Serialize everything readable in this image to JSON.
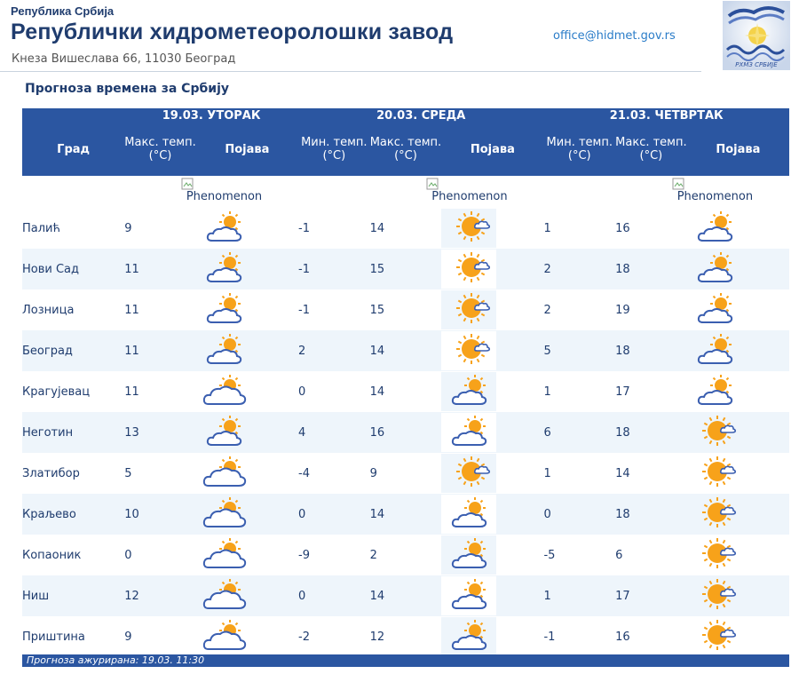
{
  "header": {
    "republika": "Република Србија",
    "institution": "Републички хидрометеоролошки завод",
    "address": "Кнеза Вишеслава 66, 11030 Београд",
    "email": "office@hidmet.gov.rs",
    "logo_text": "РХМЗ СРБИЈЕ"
  },
  "section_title": "Прогноза времена за Србију",
  "table": {
    "city_header": "Град",
    "days": [
      {
        "label": "19.03. УТОРАК"
      },
      {
        "label": "20.03. СРЕДА"
      },
      {
        "label": "21.03. ЧЕТВРТАК"
      }
    ],
    "labels": {
      "max_temp": "Макс. темп. (°C)",
      "min_temp": "Мин. темп. (°C)",
      "phenomenon": "Појава"
    },
    "phenomenon_alt": "Phenomenon",
    "rows": [
      {
        "city": "Палић",
        "d1_max": "9",
        "d1_icon": "sun-behind-clouds-icon",
        "d2_min": "-1",
        "d2_max": "14",
        "d2_icon": "mostly-sunny-icon",
        "d3_min": "1",
        "d3_max": "16",
        "d3_icon": "sun-behind-clouds-icon"
      },
      {
        "city": "Нови Сад",
        "d1_max": "11",
        "d1_icon": "sun-behind-clouds-icon",
        "d2_min": "-1",
        "d2_max": "15",
        "d2_icon": "mostly-sunny-icon",
        "d3_min": "2",
        "d3_max": "18",
        "d3_icon": "sun-behind-clouds-icon"
      },
      {
        "city": "Лозница",
        "d1_max": "11",
        "d1_icon": "sun-behind-clouds-icon",
        "d2_min": "-1",
        "d2_max": "15",
        "d2_icon": "mostly-sunny-icon",
        "d3_min": "2",
        "d3_max": "19",
        "d3_icon": "sun-behind-clouds-icon"
      },
      {
        "city": "Београд",
        "d1_max": "11",
        "d1_icon": "sun-behind-clouds-icon",
        "d2_min": "2",
        "d2_max": "14",
        "d2_icon": "mostly-sunny-icon",
        "d3_min": "5",
        "d3_max": "18",
        "d3_icon": "sun-behind-clouds-icon"
      },
      {
        "city": "Крагујевац",
        "d1_max": "11",
        "d1_icon": "cloudy-sun-icon",
        "d2_min": "0",
        "d2_max": "14",
        "d2_icon": "sun-behind-clouds-icon",
        "d3_min": "1",
        "d3_max": "17",
        "d3_icon": "sun-behind-clouds-icon"
      },
      {
        "city": "Неготин",
        "d1_max": "13",
        "d1_icon": "sun-behind-clouds-icon",
        "d2_min": "4",
        "d2_max": "16",
        "d2_icon": "sun-behind-clouds-icon",
        "d3_min": "6",
        "d3_max": "18",
        "d3_icon": "mostly-sunny-icon"
      },
      {
        "city": "Златибор",
        "d1_max": "5",
        "d1_icon": "cloudy-sun-icon",
        "d2_min": "-4",
        "d2_max": "9",
        "d2_icon": "mostly-sunny-icon",
        "d3_min": "1",
        "d3_max": "14",
        "d3_icon": "mostly-sunny-icon"
      },
      {
        "city": "Краљево",
        "d1_max": "10",
        "d1_icon": "cloudy-sun-icon",
        "d2_min": "0",
        "d2_max": "14",
        "d2_icon": "sun-behind-clouds-icon",
        "d3_min": "0",
        "d3_max": "18",
        "d3_icon": "mostly-sunny-icon"
      },
      {
        "city": "Копаоник",
        "d1_max": "0",
        "d1_icon": "cloudy-sun-icon",
        "d2_min": "-9",
        "d2_max": "2",
        "d2_icon": "sun-behind-clouds-icon",
        "d3_min": "-5",
        "d3_max": "6",
        "d3_icon": "mostly-sunny-icon"
      },
      {
        "city": "Ниш",
        "d1_max": "12",
        "d1_icon": "cloudy-sun-icon",
        "d2_min": "0",
        "d2_max": "14",
        "d2_icon": "sun-behind-clouds-icon",
        "d3_min": "1",
        "d3_max": "17",
        "d3_icon": "mostly-sunny-icon"
      },
      {
        "city": "Приштина",
        "d1_max": "9",
        "d1_icon": "cloudy-sun-icon",
        "d2_min": "-2",
        "d2_max": "12",
        "d2_icon": "sun-behind-clouds-icon",
        "d3_min": "-1",
        "d3_max": "16",
        "d3_icon": "mostly-sunny-icon"
      }
    ]
  },
  "footer": {
    "updated": "Прогноза ажурирана:  19.03.  11:30"
  },
  "colors": {
    "header_blue": "#2b56a1",
    "title_blue": "#1f3c6e",
    "link_blue": "#2a7cc8",
    "row_alt": "#eef5fb",
    "sun": "#f7a21a",
    "cloud_stroke": "#3b5fb0"
  }
}
